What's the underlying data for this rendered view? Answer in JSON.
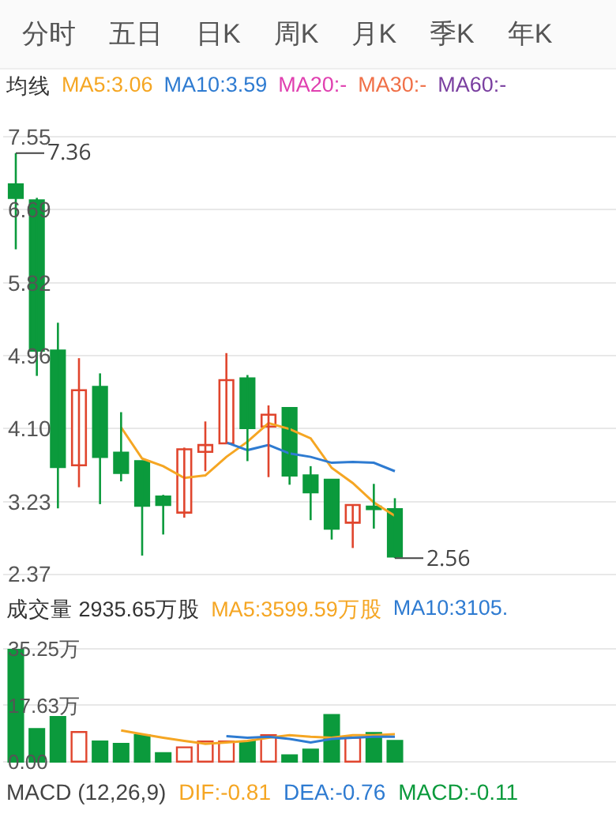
{
  "chart_data": [
    {
      "type": "candlestick",
      "annotations": [
        "分时",
        "五日",
        "日K",
        "周K",
        "月K",
        "季K",
        "年K",
        "均线",
        "7.36",
        "2.56"
      ],
      "categories": [
        null,
        null,
        null,
        null,
        null,
        null,
        null,
        null,
        null,
        null,
        null,
        null,
        null,
        null,
        null,
        null,
        null,
        null,
        null
      ],
      "ohlc": [
        [
          6.99,
          7.36,
          6.22,
          6.83
        ],
        [
          6.8,
          6.83,
          4.72,
          5.02
        ],
        [
          5.02,
          5.35,
          3.15,
          3.64
        ],
        [
          3.66,
          4.93,
          3.4,
          4.55
        ],
        [
          4.59,
          4.75,
          3.2,
          3.76
        ],
        [
          3.81,
          4.29,
          3.47,
          3.57
        ],
        [
          3.71,
          3.71,
          2.59,
          3.18
        ],
        [
          3.29,
          3.31,
          2.84,
          3.19
        ],
        [
          3.1,
          3.87,
          3.04,
          3.85
        ],
        [
          3.82,
          4.18,
          3.59,
          3.9
        ],
        [
          3.92,
          4.99,
          3.92,
          4.67
        ],
        [
          4.69,
          4.73,
          3.71,
          4.1
        ],
        [
          4.12,
          4.37,
          3.52,
          4.26
        ],
        [
          4.34,
          4.34,
          3.43,
          3.54
        ],
        [
          3.54,
          3.65,
          3.01,
          3.34
        ],
        [
          3.49,
          3.49,
          2.78,
          2.91
        ],
        [
          2.98,
          3.19,
          2.68,
          3.19
        ],
        [
          3.17,
          3.44,
          2.91,
          3.14
        ],
        [
          3.14,
          3.27,
          2.56,
          2.58
        ]
      ],
      "colors": [
        "#0b9a3c",
        "#0b9a3c",
        "#0b9a3c",
        "#e0452d",
        "#0b9a3c",
        "#0b9a3c",
        "#0b9a3c",
        "#0b9a3c",
        "#e0452d",
        "#e0452d",
        "#e0452d",
        "#0b9a3c",
        "#e0452d",
        "#0b9a3c",
        "#0b9a3c",
        "#0b9a3c",
        "#e0452d",
        "#0b9a3c",
        "#0b9a3c"
      ],
      "series": [
        {
          "name": "MA5:3.06",
          "type": "line",
          "color": "#f5a623",
          "values": [
            null,
            null,
            null,
            null,
            null,
            4.11,
            3.74,
            3.65,
            3.51,
            3.54,
            3.76,
            3.94,
            4.16,
            4.09,
            3.98,
            3.63,
            3.45,
            3.22,
            3.06
          ]
        },
        {
          "name": "MA10:3.59",
          "type": "line",
          "color": "#2e7bd1",
          "values": [
            null,
            null,
            null,
            null,
            null,
            null,
            null,
            null,
            null,
            null,
            3.93,
            3.84,
            3.9,
            3.8,
            3.76,
            3.69,
            3.7,
            3.69,
            3.59
          ]
        },
        {
          "name": "MA20:-",
          "type": "line",
          "color": "#e040b0",
          "values": [
            null,
            null,
            null,
            null,
            null,
            null,
            null,
            null,
            null,
            null,
            null,
            null,
            null,
            null,
            null,
            null,
            null,
            null,
            null
          ]
        },
        {
          "name": "MA30:-",
          "type": "line",
          "color": "#f07048",
          "values": [
            null,
            null,
            null,
            null,
            null,
            null,
            null,
            null,
            null,
            null,
            null,
            null,
            null,
            null,
            null,
            null,
            null,
            null,
            null
          ]
        },
        {
          "name": "MA60:-",
          "type": "line",
          "color": "#7a3fa0",
          "values": [
            null,
            null,
            null,
            null,
            null,
            null,
            null,
            null,
            null,
            null,
            null,
            null,
            null,
            null,
            null,
            null,
            null,
            null,
            null
          ]
        }
      ],
      "ylim": [
        2.15,
        7.77
      ],
      "yticks": [
        2.37,
        3.23,
        {
          "value": 4.1,
          "label": "4.10"
        },
        4.96,
        5.82,
        6.69,
        7.55
      ],
      "grid": "y",
      "legend": "top left",
      "tick_labels": "y"
    },
    {
      "type": "bar",
      "annotations": [
        "MACD (12,26,9)",
        "DIF:-0.81",
        "DEA:-0.76",
        "MACD:-0.11"
      ],
      "categories": [
        null,
        null,
        null,
        null,
        null,
        null,
        null,
        null,
        null,
        null,
        null,
        null,
        null,
        null,
        null,
        null,
        null,
        null,
        null
      ],
      "series": [
        {
          "name": "成交量 2935.65万股",
          "type": "bar",
          "colors": [
            "#0b9a3c",
            "#0b9a3c",
            "#0b9a3c",
            "#e0452d",
            "#0b9a3c",
            "#0b9a3c",
            "#0b9a3c",
            "#0b9a3c",
            "#e0452d",
            "#e0452d",
            "#e0452d",
            "#0b9a3c",
            "#e0452d",
            "#0b9a3c",
            "#0b9a3c",
            "#0b9a3c",
            "#e0452d",
            "#0b9a3c",
            "#0b9a3c"
          ],
          "values": [
            35,
            10.2,
            14.0,
            9.3,
            6.3,
            5.6,
            8.3,
            2.7,
            4.5,
            6.3,
            6.3,
            6.3,
            8.3,
            2.0,
            3.8,
            14.6,
            7.5,
            9.0,
            6.5
          ]
        },
        {
          "name": "MA5:3599.59万股",
          "type": "line",
          "color": "#f5a623",
          "values": [
            null,
            null,
            null,
            null,
            null,
            9.8,
            8.6,
            7.5,
            6.5,
            5.6,
            6.0,
            6.5,
            7.5,
            8.3,
            7.8,
            7.5,
            8.3,
            8.3,
            8.6
          ]
        },
        {
          "name": "MA10:3105.",
          "type": "line",
          "color": "#2e7bd1",
          "values": [
            null,
            null,
            null,
            null,
            null,
            null,
            null,
            null,
            null,
            null,
            8.0,
            7.5,
            7.8,
            7.1,
            6.0,
            7.1,
            7.5,
            7.8,
            7.8
          ]
        }
      ],
      "ylim": [
        -4.5,
        40
      ],
      "yticks": [
        {
          "value": 0,
          "label": "0.00"
        },
        {
          "value": 17.63,
          "label": "17.63万"
        },
        {
          "value": 35.25,
          "label": "35.25万"
        }
      ],
      "grid": "y",
      "legend": "top",
      "tick_labels": "y"
    }
  ]
}
